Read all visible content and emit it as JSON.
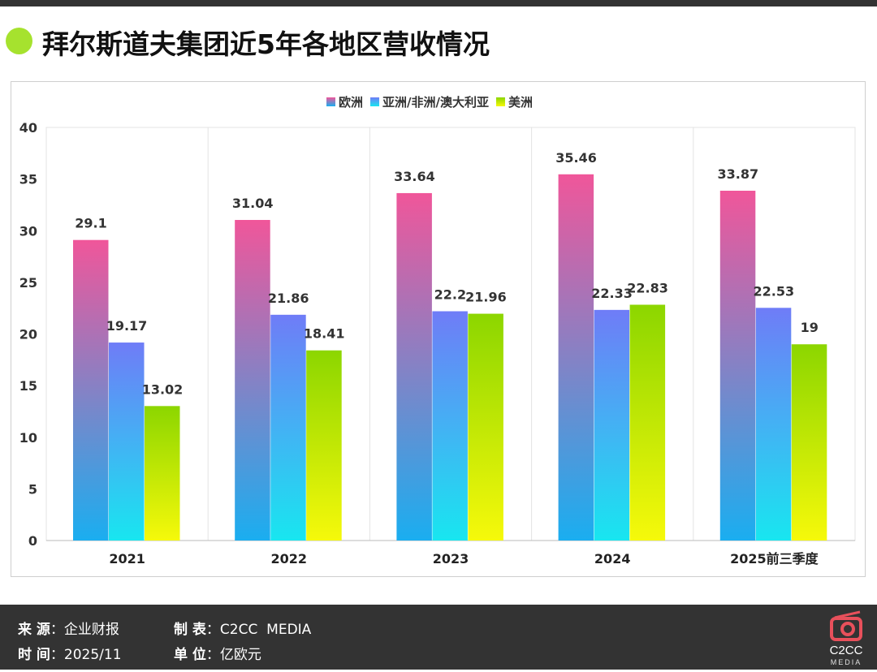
{
  "title": "拜尔斯道夫集团近5年各地区营收情况",
  "colors": {
    "accent_dot": "#a6e22e",
    "footer_bg": "#333333",
    "logo": "#e8505b"
  },
  "chart_data": {
    "type": "bar",
    "categories": [
      "2021",
      "2022",
      "2023",
      "2024",
      "2025前三季度"
    ],
    "series": [
      {
        "name": "欧洲",
        "values": [
          29.1,
          31.04,
          33.64,
          35.46,
          33.87
        ],
        "gradient": [
          "#f0569a",
          "#1aaef0"
        ]
      },
      {
        "name": "亚洲/非洲/澳大利亚",
        "values": [
          19.17,
          21.86,
          22.2,
          22.33,
          22.53
        ],
        "gradient": [
          "#6f7cf7",
          "#18e6f0"
        ]
      },
      {
        "name": "美洲",
        "values": [
          13.02,
          18.41,
          21.96,
          22.83,
          19
        ],
        "gradient": [
          "#8cd600",
          "#f6f90a"
        ]
      }
    ],
    "data_labels": [
      [
        "29.1",
        "31.04",
        "33.64",
        "35.46",
        "33.87"
      ],
      [
        "19.17",
        "21.86",
        "22.2",
        "22.33",
        "22.53"
      ],
      [
        "13.02",
        "18.41",
        "21.96",
        "22.83",
        "19"
      ]
    ],
    "ylim": [
      0,
      40
    ],
    "yticks": [
      0,
      5,
      10,
      15,
      20,
      25,
      30,
      35,
      40
    ],
    "legend_position": "top",
    "grid": "vertical category separators"
  },
  "footer": {
    "source_label": "来 源",
    "source_value": "企业财报",
    "maker_label": "制 表",
    "maker_value": "C2CC  MEDIA",
    "time_label": "时 间",
    "time_value": "2025/11",
    "unit_label": "单 位",
    "unit_value": "亿欧元",
    "logo_text": "C2CC",
    "logo_sub": "MEDIA"
  }
}
